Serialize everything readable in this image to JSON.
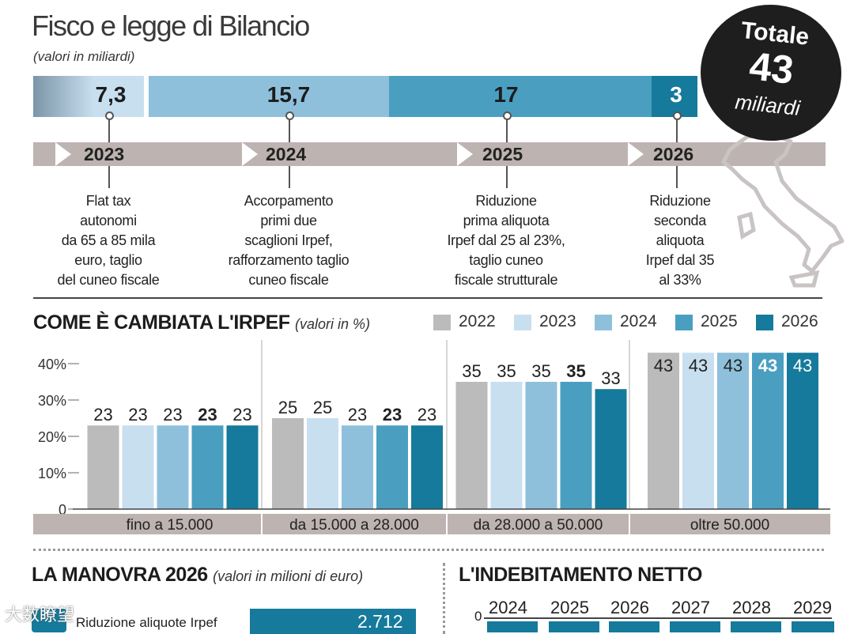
{
  "header": {
    "title": "Fisco e legge di Bilancio",
    "subtitle": "(valori in miliardi)"
  },
  "badge": {
    "line1": "Totale",
    "line2": "43",
    "line3": "miliardi"
  },
  "timeline": {
    "segments": [
      {
        "value": "7,3",
        "color": "#c8dff0"
      },
      {
        "value": "15,7",
        "color": "#8ec0dc"
      },
      {
        "value": "17",
        "color": "#4a9fc1"
      },
      {
        "value": "3",
        "color": "#157a9b"
      }
    ],
    "years": [
      "2023",
      "2024",
      "2025",
      "2026"
    ],
    "descriptions": [
      [
        "Flat tax",
        "autonomi",
        "da 65 a 85 mila",
        "euro, taglio",
        "del cuneo fiscale"
      ],
      [
        "Accorpamento",
        "primi due",
        "scaglioni Irpef,",
        "rafforzamento taglio",
        "cuneo fiscale"
      ],
      [
        "Riduzione",
        "prima aliquota",
        "Irpef dal 25 al 23%,",
        "taglio cuneo",
        "fiscale strutturale"
      ],
      [
        "Riduzione",
        "seconda",
        "aliquota",
        "Irpef dal 35",
        "al 33%"
      ]
    ]
  },
  "irpef_section": {
    "title": "COME È CAMBIATA L'IRPEF",
    "note": "(valori in %)"
  },
  "chart_data": {
    "type": "bar",
    "title": "COME È CAMBIATA L'IRPEF (valori in %)",
    "categories": [
      "fino a 15.000",
      "da 15.000 a 28.000",
      "da 28.000 a 50.000",
      "oltre 50.000"
    ],
    "series": [
      {
        "name": "2022",
        "color": "#bbbbbb",
        "values": [
          23,
          25,
          35,
          43
        ]
      },
      {
        "name": "2023",
        "color": "#c8dff0",
        "values": [
          23,
          25,
          35,
          43
        ]
      },
      {
        "name": "2024",
        "color": "#8ec0dc",
        "values": [
          23,
          23,
          35,
          43
        ]
      },
      {
        "name": "2025",
        "color": "#4a9fc1",
        "values": [
          23,
          23,
          35,
          43
        ]
      },
      {
        "name": "2026",
        "color": "#157a9b",
        "values": [
          23,
          23,
          33,
          43
        ]
      }
    ],
    "yticks": [
      "0",
      "10%",
      "20%",
      "30%",
      "40%"
    ],
    "ylim": [
      0,
      45
    ],
    "bold_series": "2025"
  },
  "manovra": {
    "title": "LA MANOVRA 2026",
    "note": "(valori in milioni di euro)",
    "rows": [
      {
        "label": "Riduzione aliquote Irpef",
        "value": "2.712"
      }
    ]
  },
  "indebitamento": {
    "title": "L'INDEBITAMENTO NETTO",
    "axis_label": "0",
    "years": [
      "2024",
      "2025",
      "2026",
      "2027",
      "2028",
      "2029"
    ]
  },
  "watermark": "大数瞭望"
}
